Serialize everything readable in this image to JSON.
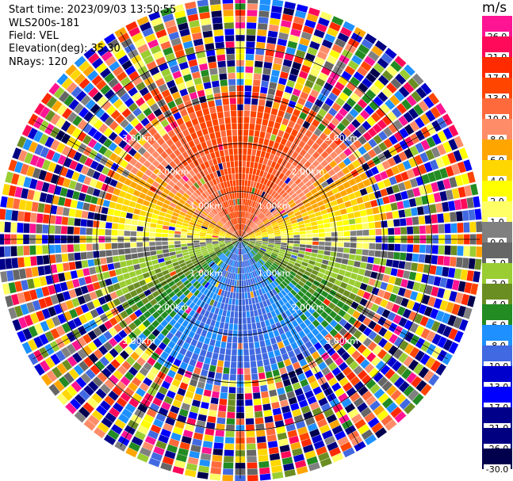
{
  "header": {
    "start_time": "Start time: 2023/09/03 13:50:55",
    "instrument": "WLS200s-181",
    "field": "Field: VEL",
    "elevation": "Elevation(deg): 35.30",
    "nrays": "NRays: 120"
  },
  "colorbar": {
    "unit": "m/s",
    "ticks": [
      "26.0",
      "21.0",
      "17.0",
      "13.0",
      "10.0",
      "8.0",
      "6.0",
      "4.0",
      "2.0",
      "1.0",
      "0.0",
      "-1.0",
      "-2.0",
      "-4.0",
      "-6.0",
      "-8.0",
      "-10.0",
      "-13.0",
      "-17.0",
      "-21.0",
      "-26.0",
      "-30.0"
    ],
    "colors": [
      "#ff1493",
      "#ff0a5a",
      "#ff2a00",
      "#ff4500",
      "#ff6a3d",
      "#ff8c69",
      "#ffa500",
      "#ffd700",
      "#ffff00",
      "#ffff66",
      "#808080",
      "#666666",
      "#9acd32",
      "#6b8e23",
      "#228b22",
      "#1e90ff",
      "#4169e1",
      "#0000cd",
      "#0000ff",
      "#00008b",
      "#000080",
      "#00004d"
    ]
  },
  "range_labels": [
    "1.00km",
    "2.00km",
    "3.00km"
  ],
  "range_ring_km": [
    1.0,
    2.0,
    3.0,
    4.0
  ],
  "max_range_km": 5.0,
  "nrays": 120
}
